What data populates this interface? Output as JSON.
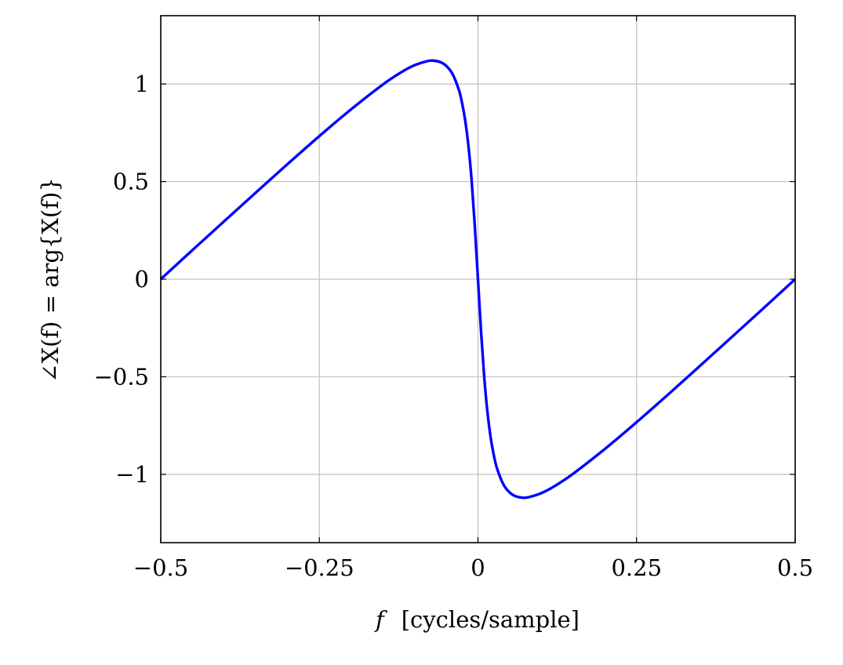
{
  "chart_data": {
    "type": "line",
    "title": "",
    "xlabel_var": "f",
    "xlabel_unit": "[cycles/sample]",
    "ylabel": "∠X(f) = arg{X(f)}",
    "xlim": [
      -0.5,
      0.5
    ],
    "ylim": [
      -1.35,
      1.35
    ],
    "grid": true,
    "xticks": [
      -0.5,
      -0.25,
      0,
      0.25,
      0.5
    ],
    "xtick_labels": [
      "−0.5",
      "−0.25",
      "0",
      "0.25",
      "0.5"
    ],
    "yticks": [
      -1,
      -0.5,
      0,
      0.5,
      1
    ],
    "ytick_labels": [
      "−1",
      "−0.5",
      "0",
      "0.5",
      "1"
    ],
    "series": [
      {
        "color": "#0000ff",
        "x": [
          -0.5,
          -0.45,
          -0.4,
          -0.35,
          -0.3,
          -0.25,
          -0.2,
          -0.15,
          -0.12,
          -0.1,
          -0.08,
          -0.0718,
          -0.06,
          -0.05,
          -0.04,
          -0.03,
          -0.025,
          -0.02,
          -0.015,
          -0.01,
          -0.005,
          0,
          0.005,
          0.01,
          0.015,
          0.02,
          0.025,
          0.03,
          0.04,
          0.05,
          0.06,
          0.0718,
          0.08,
          0.1,
          0.12,
          0.15,
          0.2,
          0.25,
          0.3,
          0.35,
          0.4,
          0.45,
          0.5
        ],
        "y": [
          0,
          0.149,
          0.297,
          0.444,
          0.59,
          0.733,
          0.87,
          0.997,
          1.062,
          1.096,
          1.117,
          1.12,
          1.113,
          1.093,
          1.051,
          0.969,
          0.902,
          0.811,
          0.683,
          0.507,
          0.274,
          0,
          -0.274,
          -0.507,
          -0.683,
          -0.811,
          -0.902,
          -0.969,
          -1.051,
          -1.093,
          -1.113,
          -1.12,
          -1.117,
          -1.096,
          -1.062,
          -0.997,
          -0.87,
          -0.733,
          -0.59,
          -0.444,
          -0.297,
          -0.149,
          0
        ]
      }
    ]
  }
}
